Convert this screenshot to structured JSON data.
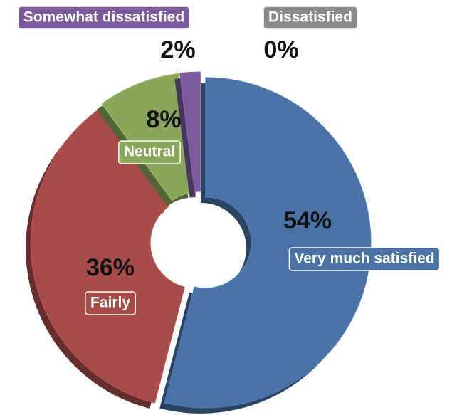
{
  "chart_data": {
    "type": "donut",
    "categories": [
      "Very much satisfied",
      "Fairly",
      "Neutral",
      "Somewhat dissatisfied",
      "Dissatisfied"
    ],
    "values": [
      54,
      36,
      8,
      2,
      0
    ],
    "value_labels": [
      "54%",
      "36%",
      "8%",
      "2%",
      "0%"
    ],
    "colors": [
      "#4a72a6",
      "#a84b4b",
      "#8aa65a",
      "#7a5a9c",
      "#8a8a8a"
    ]
  }
}
